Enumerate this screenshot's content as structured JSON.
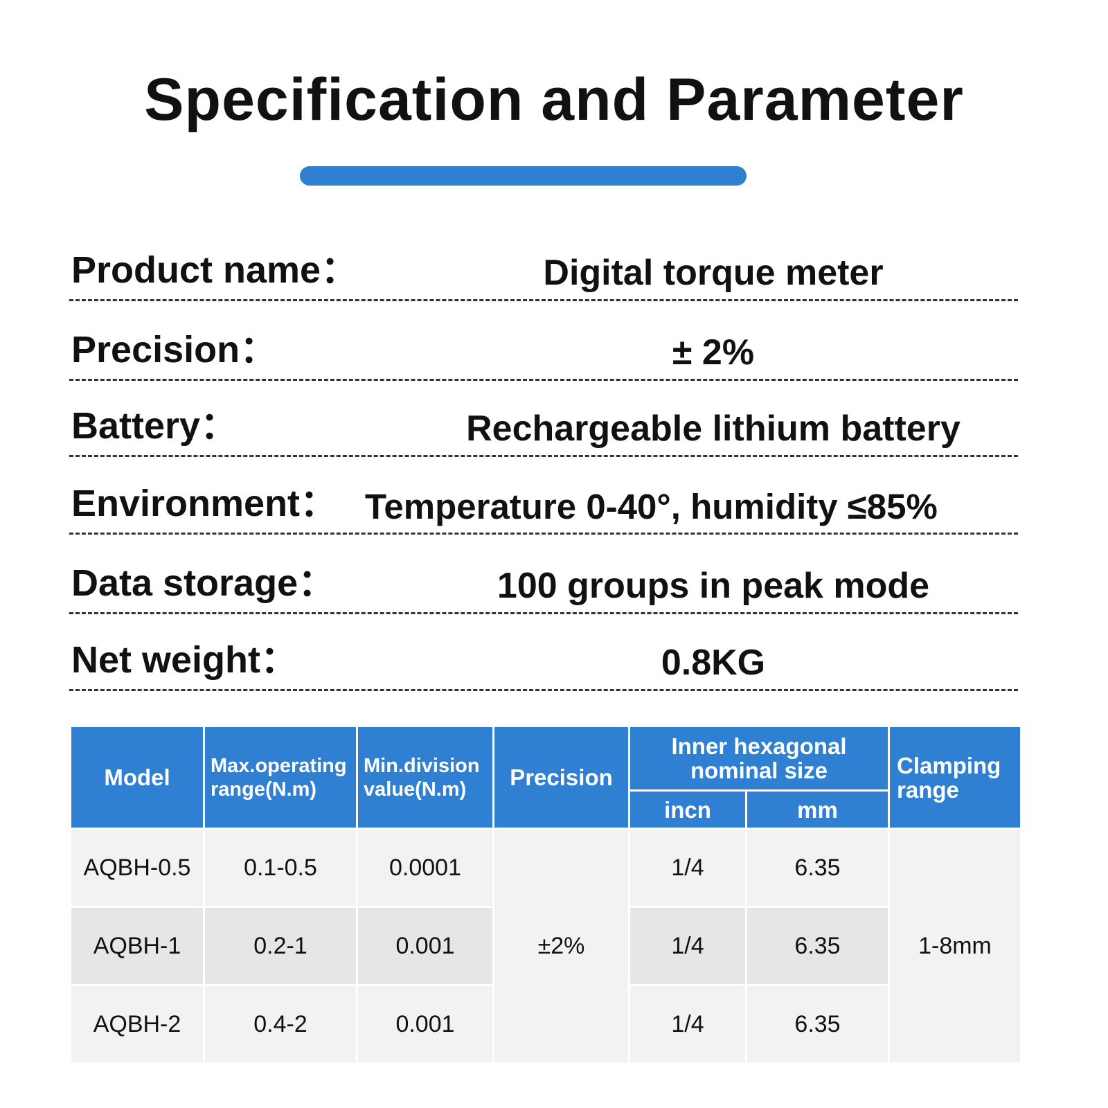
{
  "header": {
    "title": "Specification and Parameter"
  },
  "specs": [
    {
      "label": "Product name：",
      "value": "Digital torque meter"
    },
    {
      "label": "Precision：",
      "value": "± 2%"
    },
    {
      "label": "Battery：",
      "value": "Rechargeable lithium battery"
    },
    {
      "label": "Environment：",
      "value": "Temperature 0-40°, humidity ≤85%"
    },
    {
      "label": "Data storage：",
      "value": "100 groups in peak mode"
    },
    {
      "label": "Net weight：",
      "value": "0.8KG"
    }
  ],
  "table": {
    "columns": [
      "Model",
      "Max.operating range(N.m)",
      "Min.division value(N.m)",
      "Precision",
      "Inner hexagonal nominal size",
      "Clamping range"
    ],
    "subcolumns": [
      "incn",
      "mm"
    ],
    "rows": [
      [
        "AQBH-0.5",
        "0.1-0.5",
        "0.0001",
        "1/4",
        "6.35"
      ],
      [
        "AQBH-1",
        "0.2-1",
        "0.001",
        "1/4",
        "6.35"
      ],
      [
        "AQBH-2",
        "0.4-2",
        "0.001",
        "1/4",
        "6.35"
      ]
    ],
    "precision": "±2%",
    "clamping": "1-8mm"
  }
}
